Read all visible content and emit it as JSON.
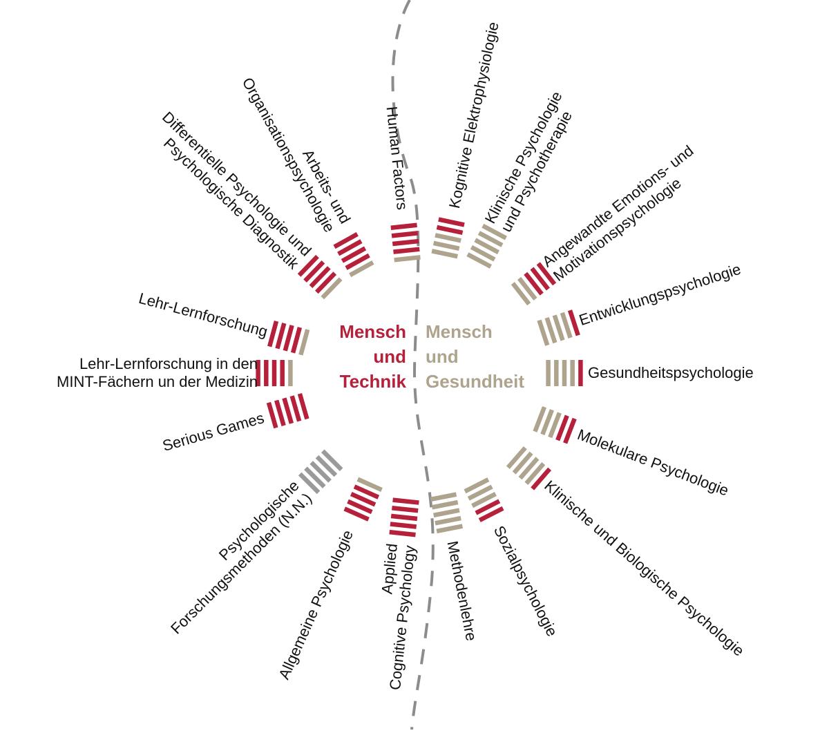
{
  "colors": {
    "red": "#b5213b",
    "tan": "#aea38d",
    "gray": "#9a9a9c",
    "dash": "#8c8c8c"
  },
  "centers": {
    "left": {
      "lines": [
        "Mensch",
        "und",
        "Technik"
      ],
      "color": "#b5213b"
    },
    "right": {
      "lines": [
        "Mensch",
        "und",
        "Gesundheit"
      ],
      "color": "#aea38d"
    }
  },
  "spokes": [
    {
      "id": "human-factors",
      "lines": [
        "Human Factors"
      ],
      "bars": [
        "tan",
        "red",
        "red",
        "red",
        "red"
      ]
    },
    {
      "id": "arbeits-und-organisationspsychologie",
      "lines": [
        "Arbeits- und",
        "Organisationspsychologie"
      ],
      "bars": [
        "tan",
        "red",
        "red",
        "red",
        "red"
      ]
    },
    {
      "id": "differentielle-psychologie",
      "lines": [
        "Differentielle Psychologie und",
        "Psychologische Diagnostik"
      ],
      "bars": [
        "tan",
        "red",
        "red",
        "red",
        "red"
      ]
    },
    {
      "id": "lehr-lernforschung",
      "lines": [
        "Lehr-Lernforschung"
      ],
      "bars": [
        "tan",
        "red",
        "red",
        "red",
        "red"
      ]
    },
    {
      "id": "lehr-lernforschung-mint",
      "lines": [
        "Lehr-Lernforschung in den",
        "MINT-Fächern un der Medizin"
      ],
      "bars": [
        "tan",
        "red",
        "red",
        "red",
        "red"
      ]
    },
    {
      "id": "serious-games",
      "lines": [
        "Serious Games"
      ],
      "bars": [
        "red",
        "red",
        "red",
        "red",
        "red"
      ]
    },
    {
      "id": "psychologische-forschungsmethoden",
      "lines": [
        "Psychologische",
        "Forschungsmethoden (N.N.)"
      ],
      "bars": [
        "gray",
        "gray",
        "gray",
        "gray",
        "gray"
      ]
    },
    {
      "id": "allgemeine-psychologie",
      "lines": [
        "Allgemeine Psychologie"
      ],
      "bars": [
        "tan",
        "red",
        "red",
        "red",
        "red"
      ]
    },
    {
      "id": "applied-cognitive-psychology",
      "lines": [
        "Applied",
        "Cognitive Psychology"
      ],
      "bars": [
        "red",
        "red",
        "red",
        "red",
        "red"
      ]
    },
    {
      "id": "methodenlehre",
      "lines": [
        "Methodenlehre"
      ],
      "bars": [
        "tan",
        "tan",
        "tan",
        "tan",
        "tan"
      ]
    },
    {
      "id": "sozialpsychologie",
      "lines": [
        "Sozialpsychologie"
      ],
      "bars": [
        "tan",
        "tan",
        "tan",
        "red",
        "red"
      ]
    },
    {
      "id": "klinische-und-biologische-psychologie",
      "lines": [
        "Klinische und Biologische Psychologie"
      ],
      "bars": [
        "tan",
        "tan",
        "tan",
        "tan",
        "red"
      ]
    },
    {
      "id": "molekulare-psychologie",
      "lines": [
        "Molekulare Psychologie"
      ],
      "bars": [
        "tan",
        "tan",
        "tan",
        "red",
        "red"
      ]
    },
    {
      "id": "gesundheitspsychologie",
      "lines": [
        "Gesundheitspsychologie"
      ],
      "bars": [
        "tan",
        "tan",
        "tan",
        "tan",
        "red"
      ]
    },
    {
      "id": "entwicklungspsychologie",
      "lines": [
        "Entwicklungspsychologie"
      ],
      "bars": [
        "tan",
        "tan",
        "tan",
        "tan",
        "red"
      ]
    },
    {
      "id": "angewandte-emotions-und-motivationspsychologie",
      "lines": [
        "Angewandte Emotions- und",
        "Motivationspsychologie"
      ],
      "bars": [
        "tan",
        "tan",
        "red",
        "red",
        "red"
      ]
    },
    {
      "id": "klinische-psychologie-und-psychotherapie",
      "lines": [
        "Klinische Psychologie",
        "und Psychotherapie"
      ],
      "bars": [
        "tan",
        "tan",
        "tan",
        "tan",
        "tan"
      ]
    },
    {
      "id": "kognitive-elektrophysiologie",
      "lines": [
        "Kognitive Elektrophysiologie"
      ],
      "bars": [
        "tan",
        "tan",
        "tan",
        "red",
        "red"
      ]
    }
  ]
}
